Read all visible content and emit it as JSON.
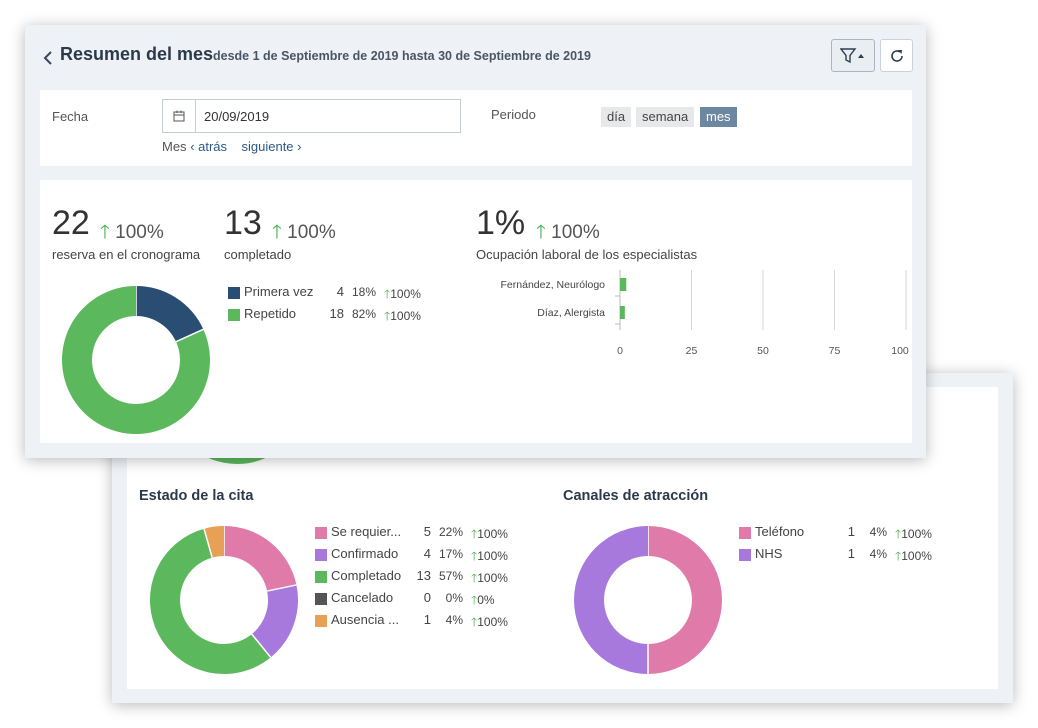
{
  "header": {
    "title": "Resumen del mes",
    "subtitle": "desde 1 de Septiembre de 2019 hasta 30 de Septiembre de 2019"
  },
  "filters": {
    "date_label": "Fecha",
    "date_value": "20/09/2019",
    "period_label": "Periodo",
    "periods": [
      "día",
      "semana",
      "mes"
    ],
    "active_period": "mes",
    "nav_prefix": "Mes",
    "nav_back": "atrás",
    "nav_next": "siguiente"
  },
  "stats": {
    "bookings": {
      "value": "22",
      "change": "100%",
      "caption": "reserva en el cronograma"
    },
    "completed": {
      "value": "13",
      "change": "100%",
      "caption": "completado"
    },
    "occupancy": {
      "value": "1%",
      "change": "100%",
      "caption": "Ocupación laboral de los especialistas"
    }
  },
  "visit_type": {
    "items": [
      {
        "label": "Primera vez",
        "count": "4",
        "pct": "18%",
        "change": "100%",
        "color": "#2a4d74",
        "value": 4
      },
      {
        "label": "Repetido",
        "count": "18",
        "pct": "82%",
        "change": "100%",
        "color": "#5cb85c",
        "value": 18
      }
    ]
  },
  "chart_data": [
    {
      "type": "bar",
      "orientation": "horizontal",
      "categories": [
        "Fernández, Neurólogo",
        "Díaz, Alergista"
      ],
      "values": [
        1.5,
        1
      ],
      "xlim": [
        0,
        100
      ],
      "xticks": [
        "0",
        "25",
        "50",
        "75",
        "100"
      ],
      "color": "#5cb85c"
    }
  ],
  "appointment_status": {
    "title": "Estado de la cita",
    "items": [
      {
        "label": "Se requier...",
        "count": "5",
        "pct": "22%",
        "change": "100%",
        "color": "#e07aa8",
        "value": 5
      },
      {
        "label": "Confirmado",
        "count": "4",
        "pct": "17%",
        "change": "100%",
        "color": "#a779dc",
        "value": 4
      },
      {
        "label": "Completado",
        "count": "13",
        "pct": "57%",
        "change": "100%",
        "color": "#5cb85c",
        "value": 13
      },
      {
        "label": "Cancelado",
        "count": "0",
        "pct": "0%",
        "change": "0%",
        "color": "#555555",
        "value": 0
      },
      {
        "label": "Ausencia ...",
        "count": "1",
        "pct": "4%",
        "change": "100%",
        "color": "#e8a057",
        "value": 1
      }
    ]
  },
  "channels": {
    "title": "Canales de atracción",
    "items": [
      {
        "label": "Teléfono",
        "count": "1",
        "pct": "4%",
        "change": "100%",
        "color": "#e07aa8",
        "value": 1
      },
      {
        "label": "NHS",
        "count": "1",
        "pct": "4%",
        "change": "100%",
        "color": "#a779dc",
        "value": 1
      }
    ]
  }
}
